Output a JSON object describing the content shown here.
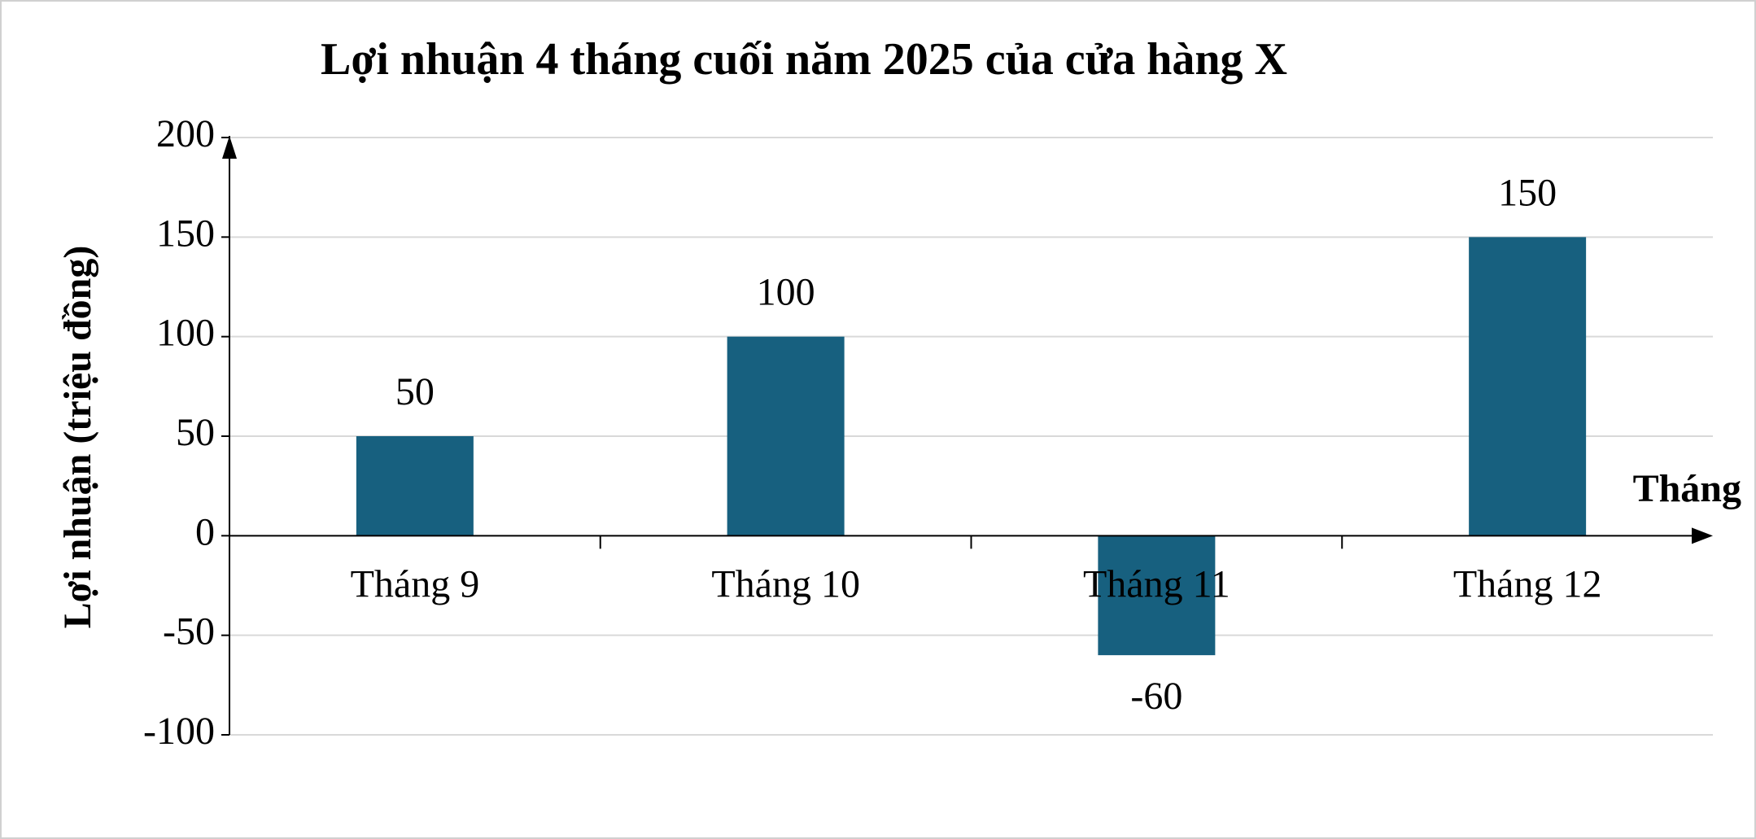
{
  "chart_data": {
    "type": "bar",
    "title": "Lợi nhuận 4 tháng cuối năm 2025 của cửa hàng X",
    "y_label": "Lợi nhuận (triệu đồng)",
    "x_label": "Tháng",
    "categories": [
      "Tháng 9",
      "Tháng 10",
      "Tháng 11",
      "Tháng 12"
    ],
    "values": [
      50,
      100,
      -60,
      150
    ],
    "color": "#17607f",
    "ylim": [
      -100,
      200
    ],
    "yticks": [
      -100,
      -50,
      0,
      50,
      100,
      150,
      200
    ],
    "grid": true
  }
}
